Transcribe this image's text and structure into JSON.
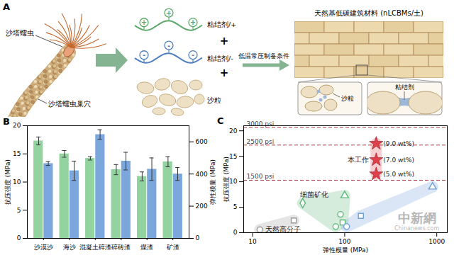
{
  "diagram": {
    "panel_label": "A",
    "organism": {
      "label": "沙塔蠕虫",
      "burrow_label": "沙塔蠕虫巢穴"
    },
    "ingredients": [
      {
        "label": "粘结剂/+",
        "charge": "+",
        "color": "#5aa86a"
      },
      {
        "label": "粘结剂/-",
        "charge": "-",
        "color": "#4f7fc0"
      },
      {
        "label": "沙粒",
        "color": "#ede0c4"
      }
    ],
    "operator": "+",
    "process_label": "低温常压制备条件",
    "product": {
      "title": "天然基低碳建筑材料 (nLCBMs/土)",
      "zoom_labels": [
        "沙粒",
        "粘结剂"
      ]
    }
  },
  "chart_data": [
    {
      "type": "bar",
      "panel_label": "B",
      "categories": [
        "沙漠沙",
        "海沙",
        "混凝土碎渣",
        "碎砖渣",
        "煤渣",
        "矿渣"
      ],
      "ylabel": "抗压强度 (MPa)",
      "ylim": [
        0,
        20
      ],
      "yticks": [
        0,
        5,
        10,
        15,
        20
      ],
      "y2label": "弹性模量 (MPa)",
      "y2lim": [
        0,
        700
      ],
      "y2ticks": [
        0,
        200,
        400,
        600
      ],
      "series": [
        {
          "color": "#93d3a0",
          "values": [
            17.3,
            15.0,
            14.2,
            12.2,
            11.0,
            13.6
          ],
          "errors": [
            0.7,
            0.6,
            0.3,
            0.9,
            0.8,
            0.9
          ]
        },
        {
          "color": "#7ba7dc",
          "axis": "y2",
          "values": [
            465,
            420,
            645,
            480,
            430,
            400
          ],
          "errors": [
            12,
            60,
            30,
            55,
            70,
            40
          ]
        }
      ]
    },
    {
      "type": "scatter",
      "panel_label": "C",
      "log": "x",
      "xlabel": "弹性模量 (MPa)",
      "ylabel": "抗压强度 (MPa)",
      "xlim": [
        8,
        1300
      ],
      "xticks": [
        10,
        100,
        1000
      ],
      "ylim": [
        0,
        21
      ],
      "yticks": [
        0,
        5,
        10,
        15,
        20
      ],
      "reference_lines": [
        {
          "value": 10.3,
          "label": "1500 psi"
        },
        {
          "value": 17.2,
          "label": "2500 psi"
        },
        {
          "value": 20.7,
          "label": "3000 psi"
        }
      ],
      "series": [
        {
          "name": "天然高分子",
          "color": "#9a9a9a",
          "x": [
            12,
            28
          ],
          "y": [
            0.6,
            2.4
          ],
          "markers": [
            "circle",
            "square"
          ]
        },
        {
          "name": "细菌矿化",
          "color": "#5cb87a",
          "x": [
            35,
            80,
            90,
            95,
            100
          ],
          "y": [
            5.8,
            1.2,
            3.6,
            2.0,
            7.3
          ],
          "markers": [
            "diamond",
            "circle",
            "circle",
            "square",
            "triangle"
          ]
        },
        {
          "color": "#6f9fd8",
          "x": [
            105,
            150,
            900
          ],
          "y": [
            1.2,
            3.3,
            9.0
          ],
          "markers": [
            "circle",
            "square",
            "triangle"
          ]
        },
        {
          "name": "本工作",
          "color": "#e0404c",
          "x": [
            220,
            220,
            220
          ],
          "y": [
            11.5,
            14.3,
            17.5
          ],
          "markers": [
            "star",
            "star",
            "star"
          ],
          "point_labels": [
            "(5.0 wt%)",
            "(7.0 wt%)",
            "(9.0 wt%)"
          ]
        }
      ]
    }
  ],
  "watermark": {
    "text": "中新網",
    "subtext": "Chinanews.com"
  }
}
